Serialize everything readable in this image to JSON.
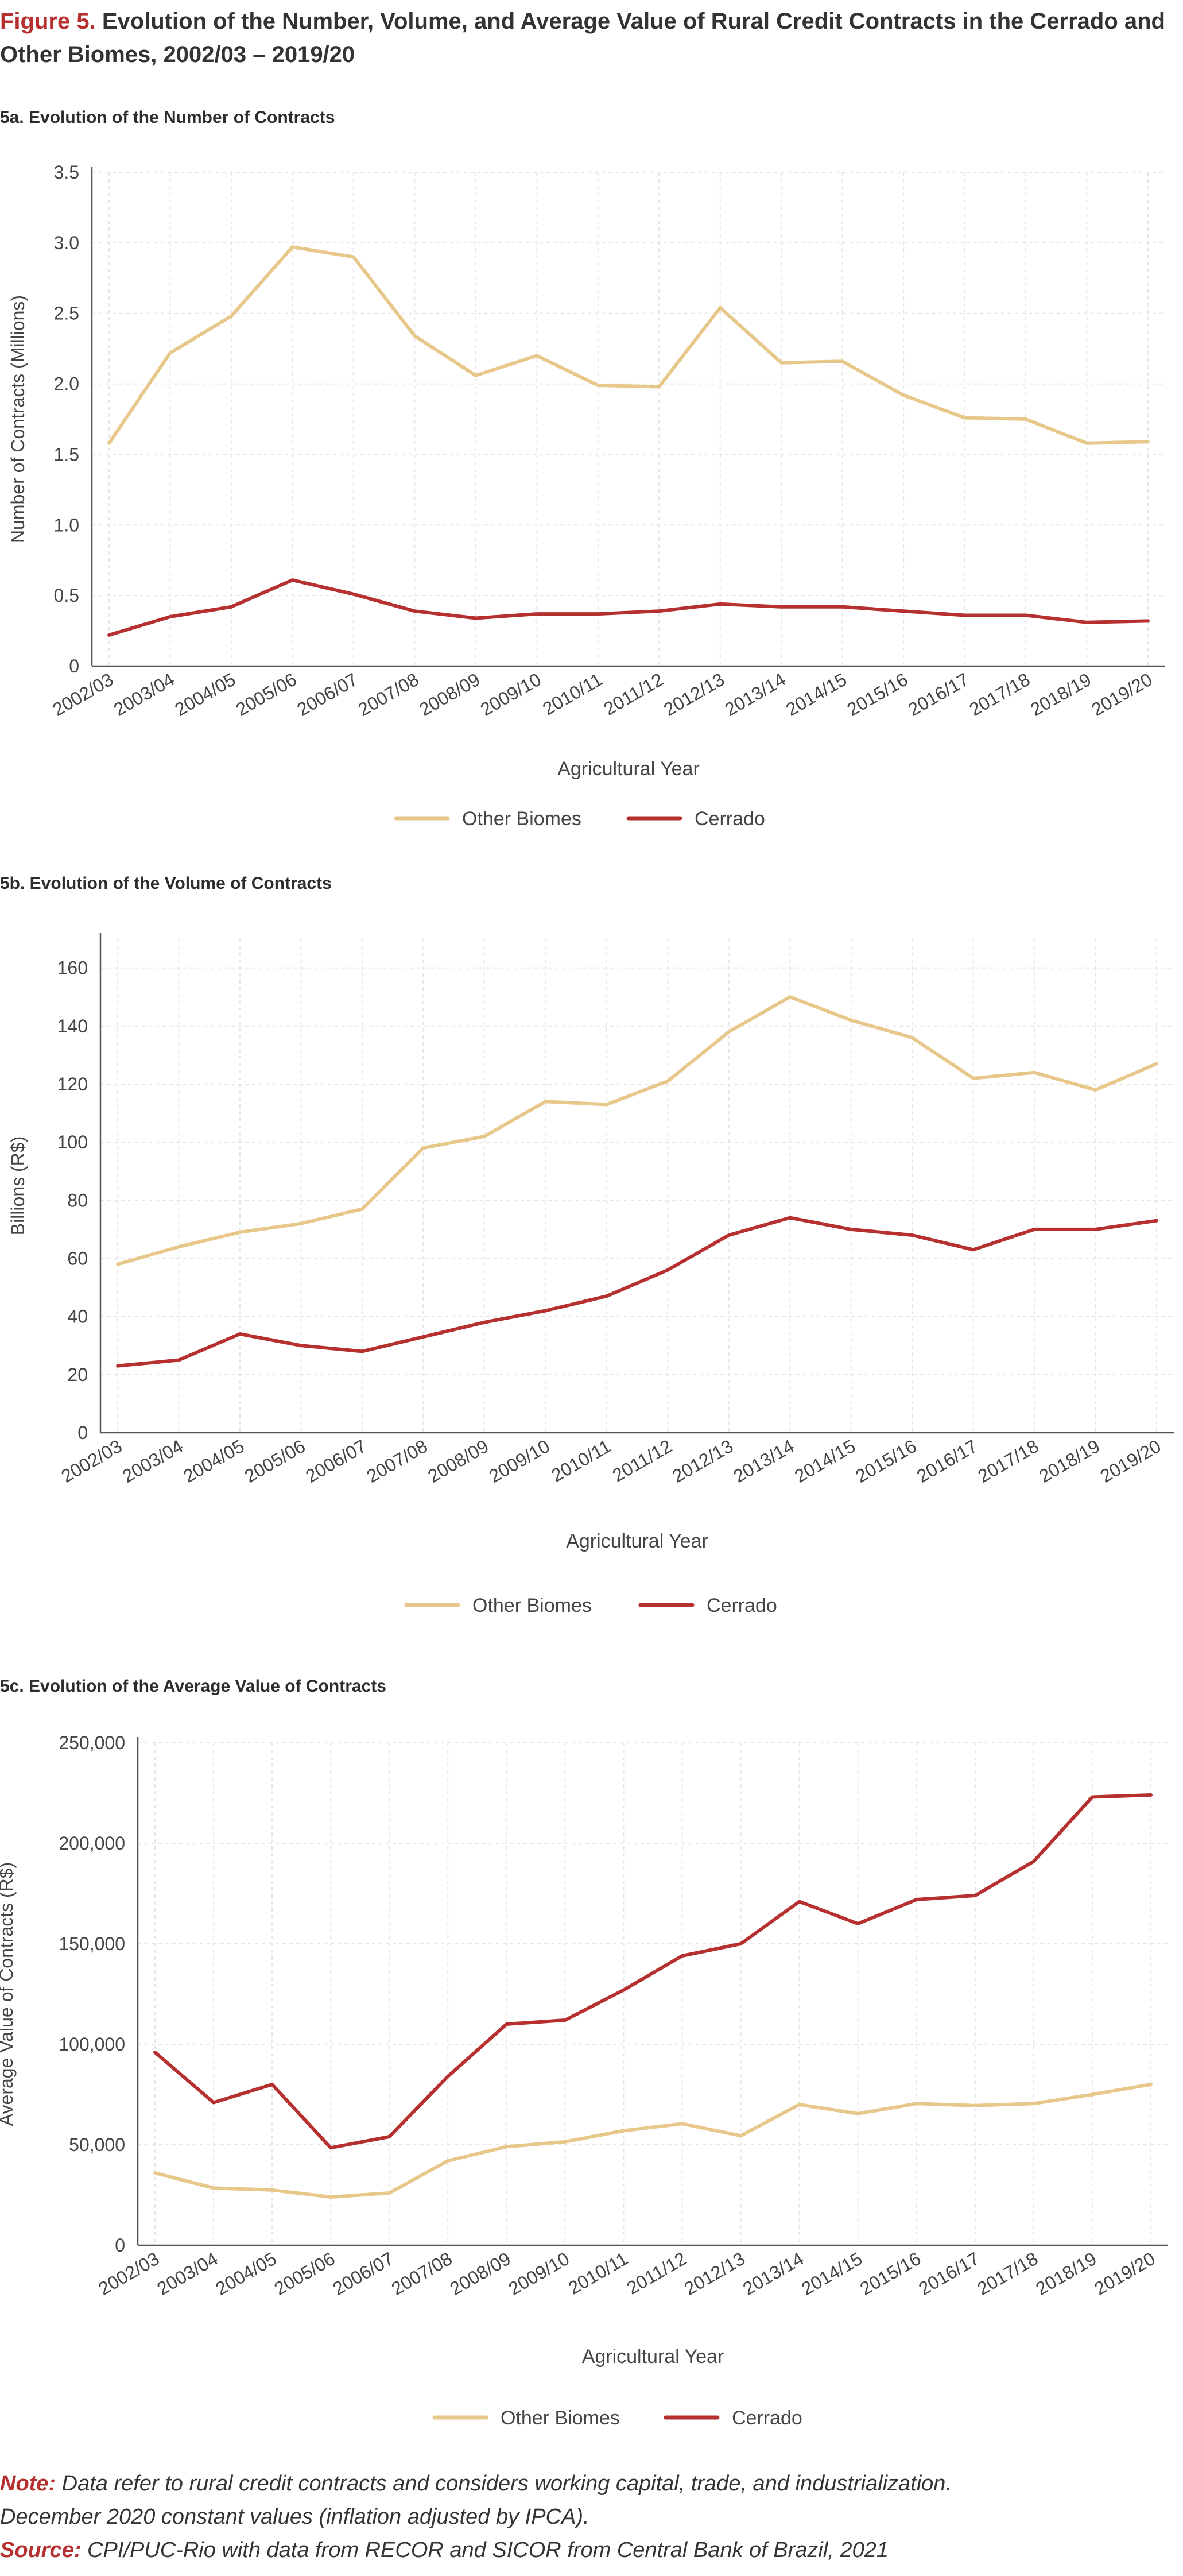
{
  "figure": {
    "label": "Figure 5.",
    "title": "Evolution of the Number, Volume, and Average Value of Rural Credit Contracts in the Cerrado and Other Biomes, 2002/03 – 2019/20"
  },
  "colors": {
    "other_biomes": "#e8c88a",
    "cerrado": "#b5302e",
    "grid": "#e6e6e6",
    "axis": "#555555"
  },
  "chart_data": [
    {
      "type": "line",
      "panel_title": "5a. Evolution of the Number of Contracts",
      "xlabel": "Agricultural Year",
      "ylabel": "Number of Contracts (Millions)",
      "ylim": [
        0,
        3.5
      ],
      "yticks": [
        0,
        0.5,
        1.0,
        1.5,
        2.0,
        2.5,
        3.0,
        3.5
      ],
      "ytick_labels": [
        "0",
        "0.5",
        "1.0",
        "1.5",
        "2.0",
        "2.5",
        "3.0",
        "3.5"
      ],
      "grid": true,
      "legend_position": "bottom-center",
      "categories": [
        "2002/03",
        "2003/04",
        "2004/05",
        "2005/06",
        "2006/07",
        "2007/08",
        "2008/09",
        "2009/10",
        "2010/11",
        "2011/12",
        "2012/13",
        "2013/14",
        "2014/15",
        "2015/16",
        "2016/17",
        "2017/18",
        "2018/19",
        "2019/20"
      ],
      "series": [
        {
          "name": "Other Biomes",
          "values": [
            1.58,
            2.22,
            2.48,
            2.97,
            2.9,
            2.34,
            2.06,
            2.2,
            1.99,
            1.98,
            2.54,
            2.15,
            2.16,
            1.92,
            1.76,
            1.75,
            1.58,
            1.59
          ]
        },
        {
          "name": "Cerrado",
          "values": [
            0.22,
            0.35,
            0.42,
            0.61,
            0.51,
            0.39,
            0.34,
            0.37,
            0.37,
            0.39,
            0.44,
            0.42,
            0.42,
            0.39,
            0.36,
            0.36,
            0.31,
            0.32
          ]
        }
      ]
    },
    {
      "type": "line",
      "panel_title": "5b. Evolution of the Volume of Contracts",
      "xlabel": "Agricultural Year",
      "ylabel": "Billions (R$)",
      "ylim": [
        0,
        170
      ],
      "yticks": [
        0,
        20,
        40,
        60,
        80,
        100,
        120,
        140,
        160
      ],
      "ytick_labels": [
        "0",
        "20",
        "40",
        "60",
        "80",
        "100",
        "120",
        "140",
        "160"
      ],
      "grid": true,
      "legend_position": "bottom-center",
      "categories": [
        "2002/03",
        "2003/04",
        "2004/05",
        "2005/06",
        "2006/07",
        "2007/08",
        "2008/09",
        "2009/10",
        "2010/11",
        "2011/12",
        "2012/13",
        "2013/14",
        "2014/15",
        "2015/16",
        "2016/17",
        "2017/18",
        "2018/19",
        "2019/20"
      ],
      "series": [
        {
          "name": "Other Biomes",
          "values": [
            58,
            64,
            69,
            72,
            77,
            98,
            102,
            114,
            113,
            121,
            138,
            150,
            142,
            136,
            122,
            124,
            118,
            127
          ]
        },
        {
          "name": "Cerrado",
          "values": [
            23,
            25,
            34,
            30,
            28,
            33,
            38,
            42,
            47,
            56,
            68,
            74,
            70,
            68,
            63,
            70,
            70,
            73
          ]
        }
      ]
    },
    {
      "type": "line",
      "panel_title": "5c. Evolution of the Average Value of Contracts",
      "xlabel": "Agricultural Year",
      "ylabel": "Average Value of Contracts (R$)",
      "ylim": [
        0,
        250000
      ],
      "yticks": [
        0,
        50000,
        100000,
        150000,
        200000,
        250000
      ],
      "ytick_labels": [
        "0",
        "50,000",
        "100,000",
        "150,000",
        "200,000",
        "250,000"
      ],
      "grid": true,
      "legend_position": "bottom-center",
      "categories": [
        "2002/03",
        "2003/04",
        "2004/05",
        "2005/06",
        "2006/07",
        "2007/08",
        "2008/09",
        "2009/10",
        "2010/11",
        "2011/12",
        "2012/13",
        "2013/14",
        "2014/15",
        "2015/16",
        "2016/17",
        "2017/18",
        "2018/19",
        "2019/20"
      ],
      "series": [
        {
          "name": "Other Biomes",
          "values": [
            36000,
            28500,
            27500,
            24000,
            26000,
            42000,
            49000,
            51500,
            57000,
            60500,
            54500,
            70000,
            65500,
            70500,
            69500,
            70500,
            75000,
            80000
          ]
        },
        {
          "name": "Cerrado",
          "values": [
            96000,
            71000,
            80000,
            48500,
            54000,
            84000,
            110000,
            112000,
            127000,
            144000,
            150000,
            171000,
            160000,
            172000,
            174000,
            191000,
            223000,
            224000
          ]
        }
      ]
    }
  ],
  "notes": {
    "note_label": "Note:",
    "note_line1": "Data refer to rural credit contracts and considers working capital, trade, and industrialization.",
    "note_line2": "December 2020 constant values (inflation adjusted by IPCA).",
    "source_label": "Source:",
    "source_text": "CPI/PUC-Rio with data from RECOR and SICOR from Central Bank of Brazil, 2021"
  }
}
